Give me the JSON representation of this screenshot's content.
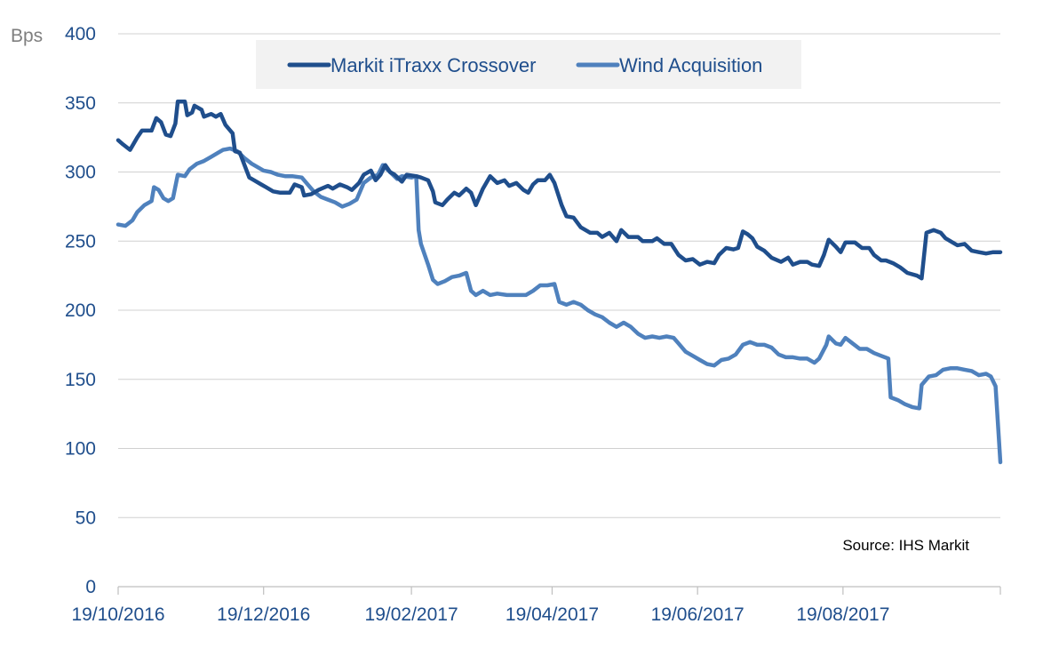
{
  "chart_data": {
    "type": "line",
    "ylabel": "Bps",
    "ylim": [
      0,
      400
    ],
    "yticks": [
      0,
      50,
      100,
      150,
      200,
      250,
      300,
      350,
      400
    ],
    "xlim": [
      "19/10/2016",
      "24/10/2017"
    ],
    "xticks": [
      "19/10/2016",
      "19/12/2016",
      "19/02/2017",
      "19/04/2017",
      "19/06/2017",
      "19/08/2017"
    ],
    "grid": "horizontal",
    "legend": "top-center",
    "source": "Source: IHS Markit",
    "series": [
      {
        "name": "Markit iTraxx Crossover",
        "color": "#1f4e8c",
        "points": [
          [
            "19/10/2016",
            323
          ],
          [
            "21/10/2016",
            320
          ],
          [
            "24/10/2016",
            316
          ],
          [
            "27/10/2016",
            325
          ],
          [
            "29/10/2016",
            330
          ],
          [
            "02/11/2016",
            330
          ],
          [
            "04/11/2016",
            339
          ],
          [
            "06/11/2016",
            336
          ],
          [
            "08/11/2016",
            327
          ],
          [
            "10/11/2016",
            326
          ],
          [
            "12/11/2016",
            335
          ],
          [
            "13/11/2016",
            351
          ],
          [
            "16/11/2016",
            351
          ],
          [
            "17/11/2016",
            341
          ],
          [
            "19/11/2016",
            343
          ],
          [
            "20/11/2016",
            348
          ],
          [
            "23/11/2016",
            345
          ],
          [
            "24/11/2016",
            340
          ],
          [
            "27/11/2016",
            342
          ],
          [
            "29/11/2016",
            340
          ],
          [
            "01/12/2016",
            342
          ],
          [
            "03/12/2016",
            334
          ],
          [
            "06/12/2016",
            328
          ],
          [
            "07/12/2016",
            315
          ],
          [
            "09/12/2016",
            314
          ],
          [
            "11/12/2016",
            305
          ],
          [
            "13/12/2016",
            296
          ],
          [
            "15/12/2016",
            294
          ],
          [
            "18/12/2016",
            291
          ],
          [
            "20/12/2016",
            289
          ],
          [
            "23/12/2016",
            286
          ],
          [
            "26/12/2016",
            285
          ],
          [
            "30/12/2016",
            285
          ],
          [
            "01/01/2017",
            291
          ],
          [
            "04/01/2017",
            289
          ],
          [
            "05/01/2017",
            283
          ],
          [
            "08/01/2017",
            284
          ],
          [
            "11/01/2017",
            287
          ],
          [
            "15/01/2017",
            290
          ],
          [
            "17/01/2017",
            288
          ],
          [
            "20/01/2017",
            291
          ],
          [
            "23/01/2017",
            289
          ],
          [
            "25/01/2017",
            287
          ],
          [
            "28/01/2017",
            292
          ],
          [
            "30/01/2017",
            298
          ],
          [
            "02/02/2017",
            301
          ],
          [
            "04/02/2017",
            294
          ],
          [
            "06/02/2017",
            298
          ],
          [
            "08/02/2017",
            305
          ],
          [
            "10/02/2017",
            300
          ],
          [
            "12/02/2017",
            298
          ],
          [
            "15/02/2017",
            293
          ],
          [
            "17/02/2017",
            298
          ],
          [
            "21/02/2017",
            297
          ],
          [
            "23/02/2017",
            296
          ],
          [
            "26/02/2017",
            294
          ],
          [
            "28/02/2017",
            286
          ],
          [
            "01/03/2017",
            278
          ],
          [
            "04/03/2017",
            276
          ],
          [
            "06/03/2017",
            280
          ],
          [
            "09/03/2017",
            285
          ],
          [
            "11/03/2017",
            283
          ],
          [
            "14/03/2017",
            288
          ],
          [
            "16/03/2017",
            285
          ],
          [
            "18/03/2017",
            276
          ],
          [
            "21/03/2017",
            288
          ],
          [
            "24/03/2017",
            297
          ],
          [
            "27/03/2017",
            292
          ],
          [
            "30/03/2017",
            294
          ],
          [
            "01/04/2017",
            290
          ],
          [
            "04/04/2017",
            292
          ],
          [
            "07/04/2017",
            287
          ],
          [
            "09/04/2017",
            285
          ],
          [
            "11/04/2017",
            291
          ],
          [
            "13/04/2017",
            294
          ],
          [
            "16/04/2017",
            294
          ],
          [
            "18/04/2017",
            298
          ],
          [
            "20/04/2017",
            292
          ],
          [
            "23/04/2017",
            276
          ],
          [
            "25/04/2017",
            268
          ],
          [
            "28/04/2017",
            267
          ],
          [
            "01/05/2017",
            260
          ],
          [
            "05/05/2017",
            256
          ],
          [
            "08/05/2017",
            256
          ],
          [
            "10/05/2017",
            253
          ],
          [
            "13/05/2017",
            256
          ],
          [
            "16/05/2017",
            250
          ],
          [
            "18/05/2017",
            258
          ],
          [
            "21/05/2017",
            253
          ],
          [
            "25/05/2017",
            253
          ],
          [
            "27/05/2017",
            250
          ],
          [
            "31/05/2017",
            250
          ],
          [
            "02/06/2017",
            252
          ],
          [
            "05/06/2017",
            248
          ],
          [
            "08/06/2017",
            248
          ],
          [
            "11/06/2017",
            240
          ],
          [
            "14/06/2017",
            236
          ],
          [
            "17/06/2017",
            237
          ],
          [
            "20/06/2017",
            233
          ],
          [
            "23/06/2017",
            235
          ],
          [
            "26/06/2017",
            234
          ],
          [
            "28/06/2017",
            240
          ],
          [
            "01/07/2017",
            245
          ],
          [
            "04/07/2017",
            244
          ],
          [
            "06/07/2017",
            245
          ],
          [
            "08/07/2017",
            257
          ],
          [
            "10/07/2017",
            255
          ],
          [
            "12/07/2017",
            252
          ],
          [
            "14/07/2017",
            246
          ],
          [
            "17/07/2017",
            243
          ],
          [
            "20/07/2017",
            238
          ],
          [
            "24/07/2017",
            235
          ],
          [
            "27/07/2017",
            238
          ],
          [
            "29/07/2017",
            233
          ],
          [
            "01/08/2017",
            235
          ],
          [
            "04/08/2017",
            235
          ],
          [
            "06/08/2017",
            233
          ],
          [
            "09/08/2017",
            232
          ],
          [
            "11/08/2017",
            240
          ],
          [
            "13/08/2017",
            251
          ],
          [
            "16/08/2017",
            246
          ],
          [
            "18/08/2017",
            242
          ],
          [
            "20/08/2017",
            249
          ],
          [
            "24/08/2017",
            249
          ],
          [
            "27/08/2017",
            245
          ],
          [
            "30/08/2017",
            245
          ],
          [
            "01/09/2017",
            240
          ],
          [
            "04/09/2017",
            236
          ],
          [
            "06/09/2017",
            236
          ],
          [
            "09/09/2017",
            234
          ],
          [
            "12/09/2017",
            231
          ],
          [
            "15/09/2017",
            227
          ],
          [
            "19/09/2017",
            225
          ],
          [
            "21/09/2017",
            223
          ],
          [
            "23/09/2017",
            256
          ],
          [
            "26/09/2017",
            258
          ],
          [
            "29/09/2017",
            256
          ],
          [
            "01/10/2017",
            252
          ],
          [
            "04/10/2017",
            249
          ],
          [
            "06/10/2017",
            247
          ],
          [
            "09/10/2017",
            248
          ],
          [
            "12/10/2017",
            243
          ],
          [
            "15/10/2017",
            242
          ],
          [
            "18/10/2017",
            241
          ],
          [
            "21/10/2017",
            242
          ],
          [
            "24/10/2017",
            242
          ]
        ]
      },
      {
        "name": "Wind Acquisition",
        "color": "#4f81bd",
        "points": [
          [
            "19/10/2016",
            262
          ],
          [
            "22/10/2016",
            261
          ],
          [
            "25/10/2016",
            265
          ],
          [
            "27/10/2016",
            271
          ],
          [
            "30/10/2016",
            276
          ],
          [
            "02/11/2016",
            279
          ],
          [
            "03/11/2016",
            289
          ],
          [
            "05/11/2016",
            287
          ],
          [
            "07/11/2016",
            281
          ],
          [
            "09/11/2016",
            279
          ],
          [
            "11/11/2016",
            281
          ],
          [
            "13/11/2016",
            298
          ],
          [
            "16/11/2016",
            297
          ],
          [
            "18/11/2016",
            302
          ],
          [
            "21/11/2016",
            306
          ],
          [
            "24/11/2016",
            308
          ],
          [
            "27/11/2016",
            311
          ],
          [
            "30/11/2016",
            314
          ],
          [
            "02/12/2016",
            316
          ],
          [
            "05/12/2016",
            317
          ],
          [
            "08/12/2016",
            315
          ],
          [
            "11/12/2016",
            310
          ],
          [
            "14/12/2016",
            306
          ],
          [
            "16/12/2016",
            304
          ],
          [
            "19/12/2016",
            301
          ],
          [
            "22/12/2016",
            300
          ],
          [
            "25/12/2016",
            298
          ],
          [
            "28/12/2016",
            297
          ],
          [
            "31/12/2016",
            297
          ],
          [
            "04/01/2017",
            296
          ],
          [
            "06/01/2017",
            292
          ],
          [
            "09/01/2017",
            286
          ],
          [
            "12/01/2017",
            282
          ],
          [
            "15/01/2017",
            280
          ],
          [
            "18/01/2017",
            278
          ],
          [
            "21/01/2017",
            275
          ],
          [
            "24/01/2017",
            277
          ],
          [
            "27/01/2017",
            280
          ],
          [
            "30/01/2017",
            292
          ],
          [
            "02/02/2017",
            296
          ],
          [
            "05/02/2017",
            298
          ],
          [
            "07/02/2017",
            305
          ],
          [
            "10/02/2017",
            300
          ],
          [
            "13/02/2017",
            295
          ],
          [
            "15/02/2017",
            297
          ],
          [
            "19/02/2017",
            296
          ],
          [
            "21/02/2017",
            297
          ],
          [
            "22/02/2017",
            258
          ],
          [
            "23/02/2017",
            248
          ],
          [
            "26/02/2017",
            233
          ],
          [
            "28/02/2017",
            222
          ],
          [
            "02/03/2017",
            219
          ],
          [
            "05/03/2017",
            221
          ],
          [
            "08/03/2017",
            224
          ],
          [
            "11/03/2017",
            225
          ],
          [
            "14/03/2017",
            227
          ],
          [
            "16/03/2017",
            214
          ],
          [
            "18/03/2017",
            211
          ],
          [
            "21/03/2017",
            214
          ],
          [
            "24/03/2017",
            211
          ],
          [
            "27/03/2017",
            212
          ],
          [
            "31/03/2017",
            211
          ],
          [
            "04/04/2017",
            211
          ],
          [
            "08/04/2017",
            211
          ],
          [
            "11/04/2017",
            214
          ],
          [
            "14/04/2017",
            218
          ],
          [
            "17/04/2017",
            218
          ],
          [
            "20/04/2017",
            219
          ],
          [
            "22/04/2017",
            206
          ],
          [
            "25/04/2017",
            204
          ],
          [
            "28/04/2017",
            206
          ],
          [
            "01/05/2017",
            204
          ],
          [
            "04/05/2017",
            200
          ],
          [
            "07/05/2017",
            197
          ],
          [
            "10/05/2017",
            195
          ],
          [
            "13/05/2017",
            191
          ],
          [
            "16/05/2017",
            188
          ],
          [
            "19/05/2017",
            191
          ],
          [
            "22/05/2017",
            188
          ],
          [
            "25/05/2017",
            183
          ],
          [
            "28/05/2017",
            180
          ],
          [
            "31/05/2017",
            181
          ],
          [
            "03/06/2017",
            180
          ],
          [
            "06/06/2017",
            181
          ],
          [
            "09/06/2017",
            180
          ],
          [
            "11/06/2017",
            176
          ],
          [
            "14/06/2017",
            170
          ],
          [
            "17/06/2017",
            167
          ],
          [
            "20/06/2017",
            164
          ],
          [
            "23/06/2017",
            161
          ],
          [
            "26/06/2017",
            160
          ],
          [
            "29/06/2017",
            164
          ],
          [
            "02/07/2017",
            165
          ],
          [
            "05/07/2017",
            168
          ],
          [
            "08/07/2017",
            175
          ],
          [
            "11/07/2017",
            177
          ],
          [
            "14/07/2017",
            175
          ],
          [
            "17/07/2017",
            175
          ],
          [
            "20/07/2017",
            173
          ],
          [
            "23/07/2017",
            168
          ],
          [
            "26/07/2017",
            166
          ],
          [
            "29/07/2017",
            166
          ],
          [
            "01/08/2017",
            165
          ],
          [
            "04/08/2017",
            165
          ],
          [
            "07/08/2017",
            162
          ],
          [
            "09/08/2017",
            165
          ],
          [
            "12/08/2017",
            175
          ],
          [
            "13/08/2017",
            181
          ],
          [
            "16/08/2017",
            176
          ],
          [
            "18/08/2017",
            175
          ],
          [
            "20/08/2017",
            180
          ],
          [
            "23/08/2017",
            176
          ],
          [
            "26/08/2017",
            172
          ],
          [
            "29/08/2017",
            172
          ],
          [
            "01/09/2017",
            169
          ],
          [
            "04/09/2017",
            167
          ],
          [
            "07/09/2017",
            165
          ],
          [
            "08/09/2017",
            137
          ],
          [
            "11/09/2017",
            135
          ],
          [
            "14/09/2017",
            132
          ],
          [
            "17/09/2017",
            130
          ],
          [
            "20/09/2017",
            129
          ],
          [
            "21/09/2017",
            146
          ],
          [
            "24/09/2017",
            152
          ],
          [
            "27/09/2017",
            153
          ],
          [
            "30/09/2017",
            157
          ],
          [
            "03/10/2017",
            158
          ],
          [
            "06/10/2017",
            158
          ],
          [
            "09/10/2017",
            157
          ],
          [
            "12/10/2017",
            156
          ],
          [
            "15/10/2017",
            153
          ],
          [
            "18/10/2017",
            154
          ],
          [
            "20/10/2017",
            152
          ],
          [
            "22/10/2017",
            145
          ],
          [
            "24/10/2017",
            90
          ]
        ]
      }
    ]
  }
}
